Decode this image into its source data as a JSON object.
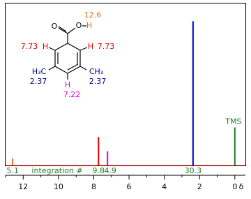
{
  "chart_data": {
    "type": "spectrum",
    "x": [
      12.6,
      7.73,
      7.22,
      2.37,
      0
    ],
    "values": [
      4.4,
      18,
      9,
      91,
      24
    ],
    "colors": [
      "#e07020",
      "#e00000",
      "#e000e0",
      "#0000e0",
      "#208020"
    ],
    "peak_label": "TMS",
    "xlim": [
      13,
      -0.6
    ],
    "xticks": [
      12,
      10,
      8,
      6,
      4,
      2,
      0
    ],
    "xminor": [
      13,
      11,
      9,
      7,
      5,
      3,
      1
    ],
    "xlabel": "δ",
    "ylim": [
      0,
      100
    ],
    "integration_label": "integration #",
    "integrations": [
      5.1,
      9.8,
      4.9,
      30.3
    ],
    "integration_x": [
      12.6,
      7.73,
      7.22,
      2.37
    ],
    "molecule": {
      "atoms": [
        "O",
        "O",
        "H",
        "H",
        "H",
        "H₃C",
        "CH₃",
        "H"
      ],
      "shifts": [
        12.6,
        7.73,
        7.73,
        2.37,
        2.37,
        7.22
      ]
    }
  }
}
